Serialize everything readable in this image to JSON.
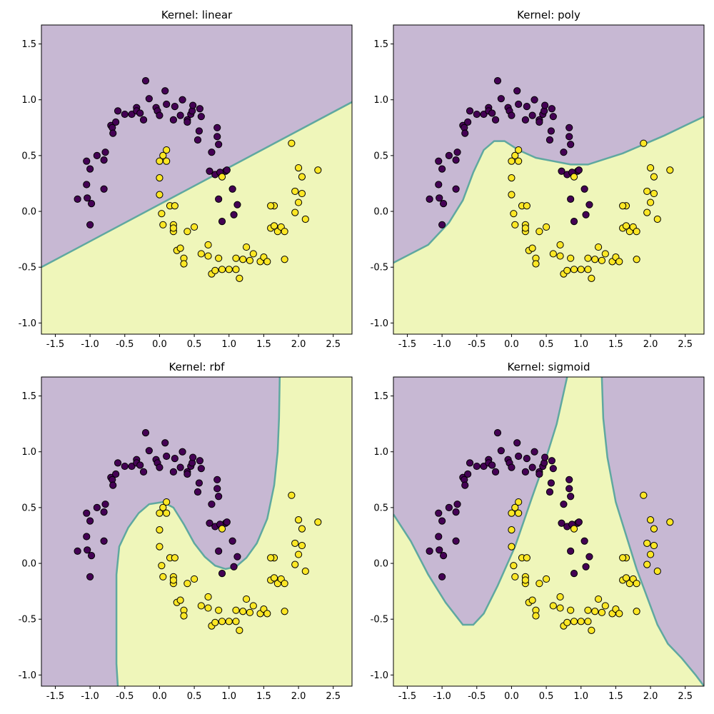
{
  "colors": {
    "class0_region": "#c7b8d3",
    "class1_region": "#eff6ba",
    "boundary_line": "#5fa8a0",
    "class0_point": "#440154",
    "class1_point": "#fde725",
    "point_edge": "#000000",
    "axis": "#000000"
  },
  "chart_data": [
    {
      "type": "scatter",
      "title": "Kernel: linear",
      "xlim": [
        -1.7,
        2.77
      ],
      "ylim": [
        -1.1,
        1.67
      ],
      "xticks": [
        "-1.5",
        "-1.0",
        "-0.5",
        "0.0",
        "0.5",
        "1.0",
        "1.5",
        "2.0",
        "2.5"
      ],
      "yticks": [
        "-1.0",
        "-0.5",
        "0.0",
        "0.5",
        "1.0",
        "1.5"
      ],
      "boundary": [
        [
          -1.7,
          -0.5
        ],
        [
          2.77,
          0.98
        ]
      ],
      "fill": "below"
    },
    {
      "type": "scatter",
      "title": "Kernel: poly",
      "xlim": [
        -1.7,
        2.77
      ],
      "ylim": [
        -1.1,
        1.67
      ],
      "xticks": [
        "-1.5",
        "-1.0",
        "-0.5",
        "0.0",
        "0.5",
        "1.0",
        "1.5",
        "2.0",
        "2.5"
      ],
      "yticks": [
        "-1.0",
        "-0.5",
        "0.0",
        "0.5",
        "1.0",
        "1.5"
      ],
      "boundary": [
        [
          -1.7,
          -0.46
        ],
        [
          -1.2,
          -0.3
        ],
        [
          -0.9,
          -0.1
        ],
        [
          -0.7,
          0.1
        ],
        [
          -0.55,
          0.35
        ],
        [
          -0.4,
          0.55
        ],
        [
          -0.25,
          0.63
        ],
        [
          -0.1,
          0.63
        ],
        [
          0.1,
          0.55
        ],
        [
          0.35,
          0.48
        ],
        [
          0.6,
          0.45
        ],
        [
          0.85,
          0.42
        ],
        [
          1.1,
          0.42
        ],
        [
          1.35,
          0.47
        ],
        [
          1.6,
          0.52
        ],
        [
          1.9,
          0.6
        ],
        [
          2.2,
          0.68
        ],
        [
          2.5,
          0.77
        ],
        [
          2.77,
          0.85
        ]
      ],
      "fill": "below"
    },
    {
      "type": "scatter",
      "title": "Kernel: rbf",
      "xlim": [
        -1.7,
        2.77
      ],
      "ylim": [
        -1.1,
        1.67
      ],
      "xticks": [
        "-1.5",
        "-1.0",
        "-0.5",
        "0.0",
        "0.5",
        "1.0",
        "1.5",
        "2.0",
        "2.5"
      ],
      "yticks": [
        "-1.0",
        "-0.5",
        "0.0",
        "0.5",
        "1.0",
        "1.5"
      ],
      "boundary": [
        [
          -0.6,
          -1.1
        ],
        [
          -0.62,
          -0.9
        ],
        [
          -0.62,
          -0.1
        ],
        [
          -0.58,
          0.15
        ],
        [
          -0.45,
          0.32
        ],
        [
          -0.3,
          0.45
        ],
        [
          -0.15,
          0.53
        ],
        [
          0.05,
          0.55
        ],
        [
          0.2,
          0.5
        ],
        [
          0.35,
          0.35
        ],
        [
          0.5,
          0.18
        ],
        [
          0.65,
          0.06
        ],
        [
          0.8,
          -0.02
        ],
        [
          0.95,
          -0.05
        ],
        [
          1.1,
          -0.03
        ],
        [
          1.25,
          0.05
        ],
        [
          1.4,
          0.18
        ],
        [
          1.55,
          0.4
        ],
        [
          1.65,
          0.7
        ],
        [
          1.7,
          1.0
        ],
        [
          1.72,
          1.3
        ],
        [
          1.73,
          1.67
        ]
      ],
      "fill": "right"
    },
    {
      "type": "scatter",
      "title": "Kernel: sigmoid",
      "xlim": [
        -1.7,
        2.77
      ],
      "ylim": [
        -1.1,
        1.67
      ],
      "xticks": [
        "-1.5",
        "-1.0",
        "-0.5",
        "0.0",
        "0.5",
        "1.0",
        "1.5",
        "2.0",
        "2.5"
      ],
      "yticks": [
        "-1.0",
        "-0.5",
        "0.0",
        "0.5",
        "1.0",
        "1.5"
      ],
      "boundary_left": [
        [
          -1.7,
          0.44
        ],
        [
          -1.45,
          0.2
        ],
        [
          -1.2,
          -0.1
        ],
        [
          -0.95,
          -0.35
        ],
        [
          -0.7,
          -0.55
        ],
        [
          -0.55,
          -0.55
        ],
        [
          -0.4,
          -0.45
        ],
        [
          -0.2,
          -0.2
        ],
        [
          0.05,
          0.15
        ],
        [
          0.3,
          0.6
        ],
        [
          0.5,
          0.95
        ],
        [
          0.65,
          1.25
        ],
        [
          0.8,
          1.67
        ]
      ],
      "boundary_right": [
        [
          1.3,
          1.67
        ],
        [
          1.32,
          1.3
        ],
        [
          1.38,
          0.95
        ],
        [
          1.5,
          0.55
        ],
        [
          1.65,
          0.25
        ],
        [
          1.8,
          -0.05
        ],
        [
          1.95,
          -0.3
        ],
        [
          2.1,
          -0.55
        ],
        [
          2.25,
          -0.72
        ],
        [
          2.45,
          -0.85
        ],
        [
          2.65,
          -1.0
        ],
        [
          2.77,
          -1.1
        ]
      ]
    }
  ],
  "points": {
    "class0": [
      [
        -1.18,
        0.11
      ],
      [
        -1.05,
        0.45
      ],
      [
        -1.05,
        0.24
      ],
      [
        -1.04,
        0.12
      ],
      [
        -1.0,
        0.38
      ],
      [
        -0.98,
        0.07
      ],
      [
        -1.0,
        -0.12
      ],
      [
        -0.9,
        0.5
      ],
      [
        -0.8,
        0.46
      ],
      [
        -0.78,
        0.53
      ],
      [
        -0.8,
        0.2
      ],
      [
        -0.7,
        0.77
      ],
      [
        -0.68,
        0.75
      ],
      [
        -0.67,
        0.7
      ],
      [
        -0.63,
        0.8
      ],
      [
        -0.6,
        0.9
      ],
      [
        -0.5,
        0.87
      ],
      [
        -0.4,
        0.87
      ],
      [
        -0.33,
        0.93
      ],
      [
        -0.33,
        0.9
      ],
      [
        -0.28,
        0.88
      ],
      [
        -0.23,
        0.82
      ],
      [
        -0.2,
        1.17
      ],
      [
        -0.15,
        1.01
      ],
      [
        -0.05,
        0.93
      ],
      [
        -0.03,
        0.9
      ],
      [
        0.0,
        0.86
      ],
      [
        0.08,
        1.08
      ],
      [
        0.1,
        0.96
      ],
      [
        0.2,
        0.82
      ],
      [
        0.22,
        0.94
      ],
      [
        0.3,
        0.86
      ],
      [
        0.33,
        1.0
      ],
      [
        0.4,
        0.82
      ],
      [
        0.4,
        0.8
      ],
      [
        0.45,
        0.87
      ],
      [
        0.47,
        0.9
      ],
      [
        0.48,
        0.95
      ],
      [
        0.55,
        0.64
      ],
      [
        0.57,
        0.72
      ],
      [
        0.58,
        0.92
      ],
      [
        0.6,
        0.85
      ],
      [
        0.72,
        0.36
      ],
      [
        0.75,
        0.53
      ],
      [
        0.8,
        0.33
      ],
      [
        0.83,
        0.75
      ],
      [
        0.83,
        0.67
      ],
      [
        0.85,
        0.6
      ],
      [
        0.85,
        0.11
      ],
      [
        0.9,
        -0.09
      ],
      [
        0.95,
        0.36
      ],
      [
        1.05,
        0.2
      ],
      [
        1.07,
        -0.03
      ],
      [
        1.12,
        0.06
      ],
      [
        0.87,
        0.35
      ],
      [
        0.97,
        0.37
      ]
    ],
    "class1": [
      [
        0.0,
        0.45
      ],
      [
        0.0,
        0.3
      ],
      [
        0.0,
        0.15
      ],
      [
        0.03,
        -0.02
      ],
      [
        0.05,
        0.5
      ],
      [
        0.05,
        -0.12
      ],
      [
        0.1,
        0.55
      ],
      [
        0.1,
        0.45
      ],
      [
        0.15,
        0.05
      ],
      [
        0.2,
        -0.18
      ],
      [
        0.2,
        -0.12
      ],
      [
        0.2,
        -0.15
      ],
      [
        0.22,
        0.05
      ],
      [
        0.25,
        -0.35
      ],
      [
        0.3,
        -0.33
      ],
      [
        0.35,
        -0.42
      ],
      [
        0.35,
        -0.47
      ],
      [
        0.4,
        -0.18
      ],
      [
        0.5,
        -0.14
      ],
      [
        0.6,
        -0.38
      ],
      [
        0.7,
        -0.3
      ],
      [
        0.7,
        -0.4
      ],
      [
        0.75,
        -0.56
      ],
      [
        0.8,
        -0.53
      ],
      [
        0.85,
        -0.42
      ],
      [
        0.9,
        -0.52
      ],
      [
        1.0,
        -0.52
      ],
      [
        1.1,
        -0.42
      ],
      [
        1.1,
        -0.52
      ],
      [
        1.15,
        -0.6
      ],
      [
        1.2,
        -0.43
      ],
      [
        1.25,
        -0.32
      ],
      [
        1.3,
        -0.44
      ],
      [
        1.35,
        -0.38
      ],
      [
        1.45,
        -0.45
      ],
      [
        1.5,
        -0.41
      ],
      [
        1.55,
        -0.45
      ],
      [
        1.6,
        -0.15
      ],
      [
        1.65,
        -0.13
      ],
      [
        1.65,
        0.05
      ],
      [
        1.7,
        -0.18
      ],
      [
        1.75,
        -0.14
      ],
      [
        1.8,
        -0.43
      ],
      [
        1.8,
        -0.18
      ],
      [
        1.9,
        0.61
      ],
      [
        1.95,
        0.18
      ],
      [
        1.95,
        -0.01
      ],
      [
        2.0,
        0.39
      ],
      [
        2.0,
        0.08
      ],
      [
        2.05,
        0.31
      ],
      [
        2.05,
        0.16
      ],
      [
        2.1,
        -0.07
      ],
      [
        2.28,
        0.37
      ],
      [
        0.9,
        0.31
      ],
      [
        1.6,
        0.05
      ]
    ]
  }
}
